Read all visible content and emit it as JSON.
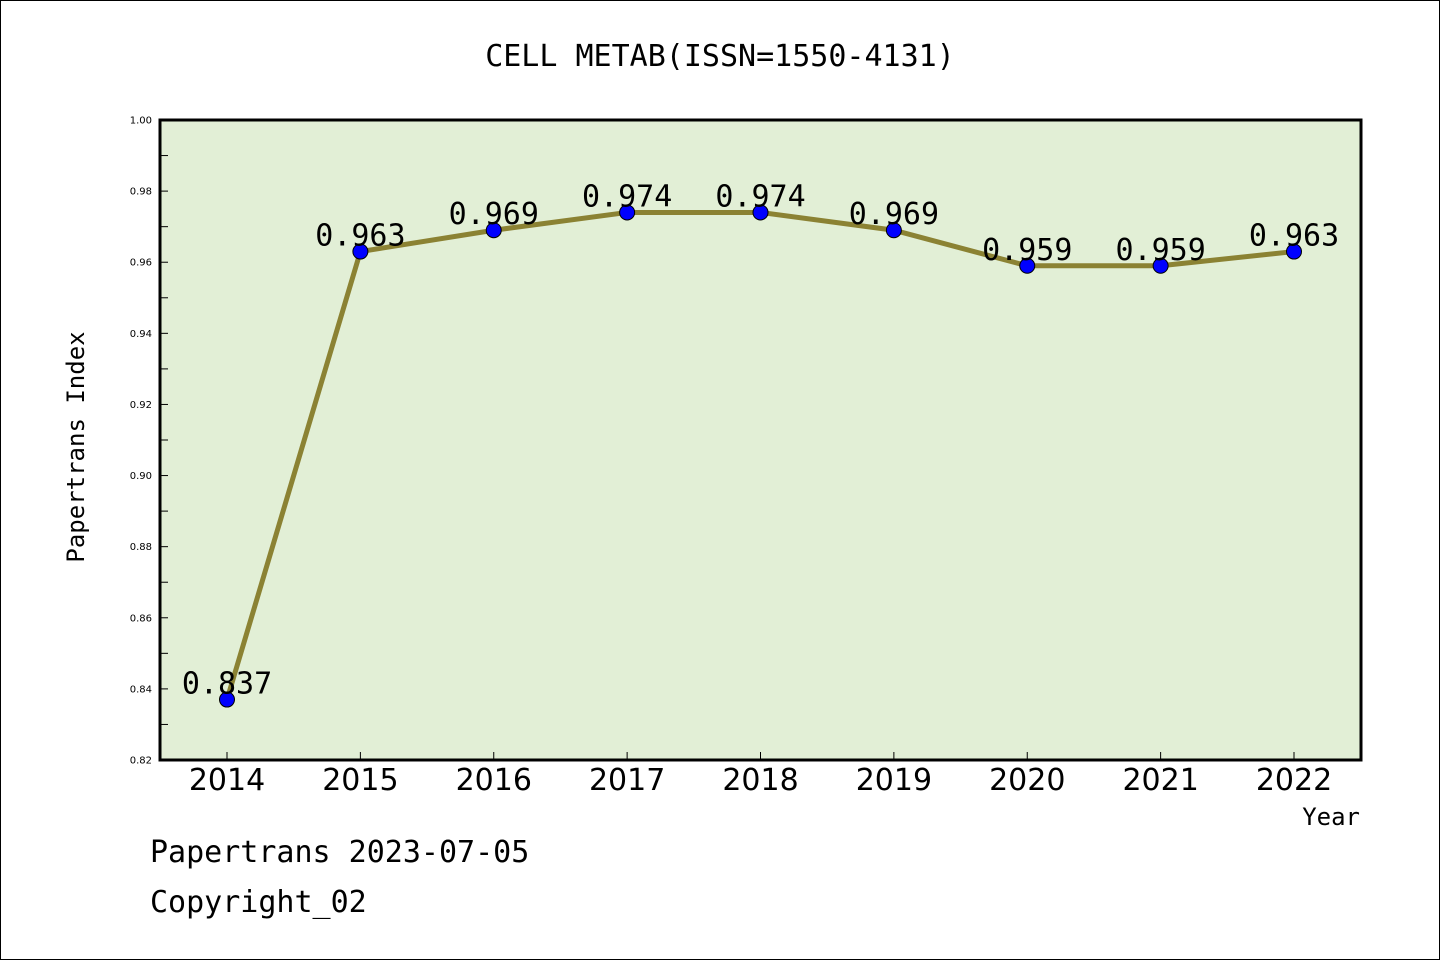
{
  "chart_data": {
    "type": "line",
    "title": "CELL METAB(ISSN=1550-4131)",
    "xlabel": "Year",
    "ylabel": "Papertrans Index",
    "categories": [
      "2014",
      "2015",
      "2016",
      "2017",
      "2018",
      "2019",
      "2020",
      "2021",
      "2022"
    ],
    "series": [
      {
        "values": [
          0.837,
          0.963,
          0.969,
          0.974,
          0.974,
          0.969,
          0.959,
          0.959,
          0.963
        ],
        "data_labels": [
          "0.837",
          "0.963",
          "0.969",
          "0.974",
          "0.974",
          "0.969",
          "0.959",
          "0.959",
          "0.963"
        ]
      }
    ],
    "ylim": [
      0.82,
      1.0
    ],
    "y_ticks": [
      "0.82",
      "0.84",
      "0.86",
      "0.88",
      "0.90",
      "0.92",
      "0.94",
      "0.96",
      "0.98",
      "1.00"
    ],
    "grid": false,
    "colors": {
      "plot_background": "#e2efd6",
      "line": "#8b8233",
      "marker": "#0000ff"
    }
  },
  "footer": {
    "line1": "Papertrans 2023-07-05",
    "line2": "Copyright_02"
  }
}
